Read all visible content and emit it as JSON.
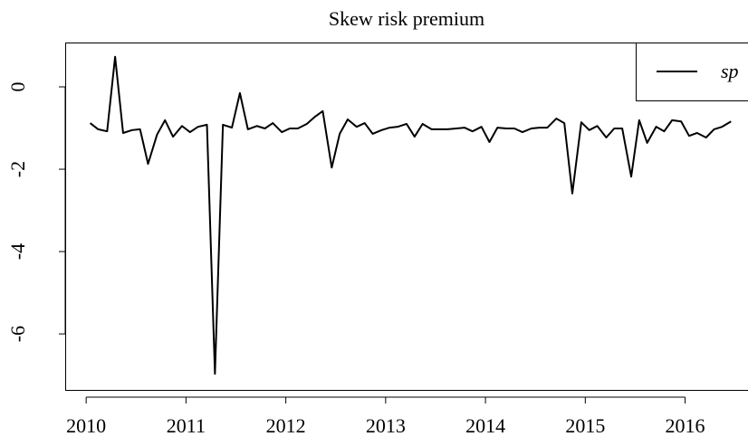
{
  "chart_data": {
    "type": "line",
    "title": "Skew risk premium",
    "x": [
      2010.04,
      2010.12,
      2010.21,
      2010.29,
      2010.37,
      2010.46,
      2010.54,
      2010.62,
      2010.71,
      2010.79,
      2010.87,
      2010.96,
      2011.04,
      2011.12,
      2011.21,
      2011.29,
      2011.37,
      2011.46,
      2011.54,
      2011.62,
      2011.71,
      2011.79,
      2011.87,
      2011.96,
      2012.04,
      2012.12,
      2012.21,
      2012.29,
      2012.37,
      2012.46,
      2012.54,
      2012.62,
      2012.71,
      2012.79,
      2012.87,
      2012.96,
      2013.04,
      2013.12,
      2013.21,
      2013.29,
      2013.37,
      2013.46,
      2013.54,
      2013.62,
      2013.71,
      2013.79,
      2013.87,
      2013.96,
      2014.04,
      2014.12,
      2014.21,
      2014.29,
      2014.37,
      2014.46,
      2014.54,
      2014.62,
      2014.71,
      2014.79,
      2014.87,
      2014.96,
      2015.04,
      2015.12,
      2015.21,
      2015.29,
      2015.37,
      2015.46,
      2015.54,
      2015.62,
      2015.71,
      2015.79,
      2015.87,
      2015.96,
      2016.04,
      2016.12,
      2016.21,
      2016.29,
      2016.37,
      2016.46
    ],
    "series": [
      {
        "name": "sp",
        "color": "#000000",
        "values": [
          -0.88,
          -1.03,
          -1.08,
          0.73,
          -1.12,
          -1.05,
          -1.03,
          -1.87,
          -1.16,
          -0.81,
          -1.21,
          -0.95,
          -1.1,
          -0.97,
          -0.92,
          -6.97,
          -0.92,
          -0.99,
          -0.15,
          -1.03,
          -0.95,
          -1.01,
          -0.88,
          -1.1,
          -1.01,
          -1.01,
          -0.9,
          -0.73,
          -0.59,
          -1.96,
          -1.14,
          -0.79,
          -0.97,
          -0.88,
          -1.14,
          -1.05,
          -0.99,
          -0.97,
          -0.9,
          -1.21,
          -0.9,
          -1.03,
          -1.03,
          -1.03,
          -1.01,
          -0.99,
          -1.08,
          -0.97,
          -1.34,
          -0.99,
          -1.01,
          -1.01,
          -1.1,
          -1.01,
          -0.99,
          -0.99,
          -0.77,
          -0.88,
          -2.59,
          -0.86,
          -1.05,
          -0.95,
          -1.23,
          -1.01,
          -1.01,
          -2.18,
          -0.81,
          -1.36,
          -0.97,
          -1.08,
          -0.81,
          -0.84,
          -1.19,
          -1.12,
          -1.23,
          -1.03,
          -0.97,
          -0.84
        ]
      }
    ],
    "xlim": [
      2009.79,
      2016.63
    ],
    "ylim": [
      -7.36,
      1.077
    ],
    "xticks": [
      2010,
      2011,
      2012,
      2013,
      2014,
      2015,
      2016
    ],
    "yticks": [
      0,
      -2,
      -4,
      -6
    ],
    "legend": "top-right"
  }
}
